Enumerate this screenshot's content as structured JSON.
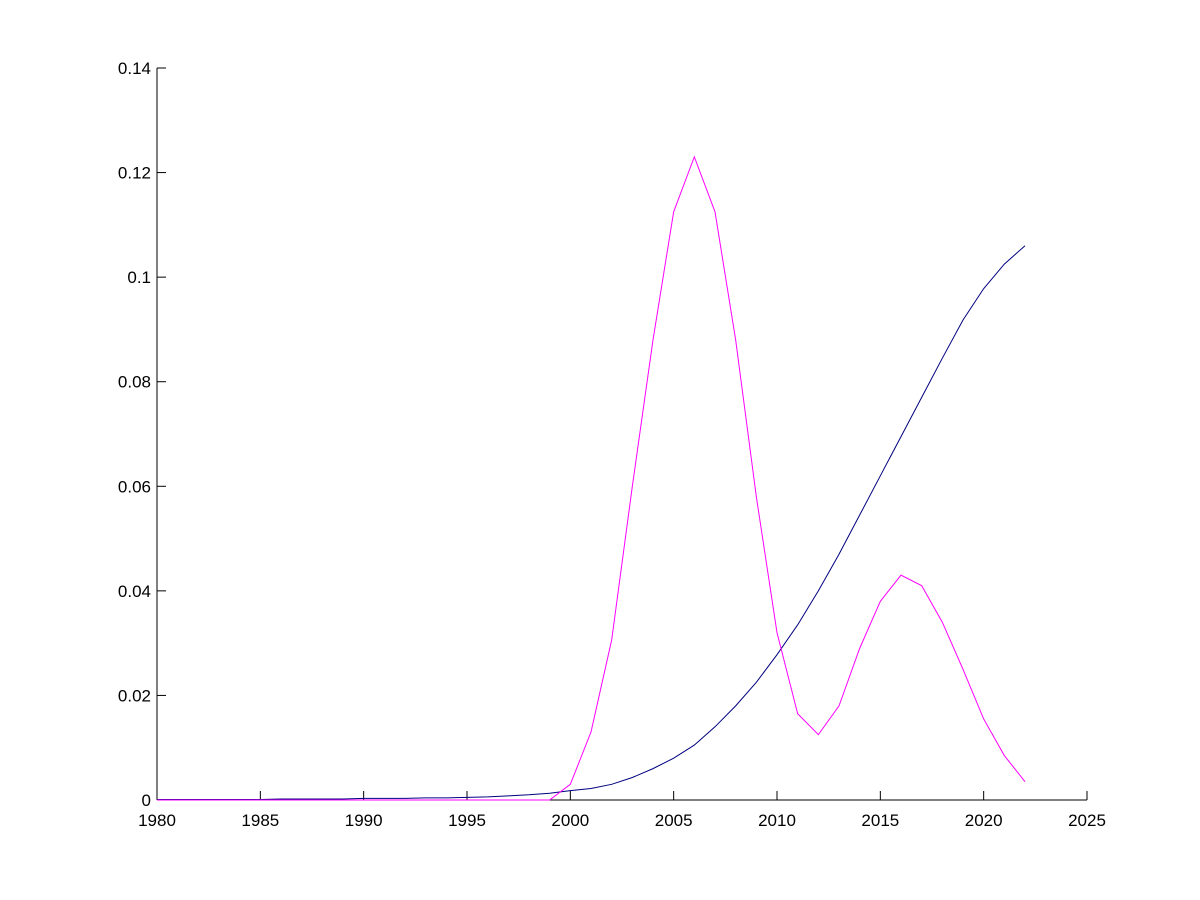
{
  "chart_data": {
    "type": "line",
    "x": [
      1980,
      1981,
      1982,
      1983,
      1984,
      1985,
      1986,
      1987,
      1988,
      1989,
      1990,
      1991,
      1992,
      1993,
      1994,
      1995,
      1996,
      1997,
      1998,
      1999,
      2000,
      2001,
      2002,
      2003,
      2004,
      2005,
      2006,
      2007,
      2008,
      2009,
      2010,
      2011,
      2012,
      2013,
      2014,
      2015,
      2016,
      2017,
      2018,
      2019,
      2020,
      2021,
      2022
    ],
    "series": [
      {
        "color": "#000080",
        "values": [
          0.0001,
          0.0001,
          0.0001,
          0.0001,
          0.0001,
          0.0001,
          0.0002,
          0.0002,
          0.0002,
          0.0002,
          0.0003,
          0.0003,
          0.0003,
          0.0004,
          0.0004,
          0.0005,
          0.0006,
          0.0008,
          0.001,
          0.0013,
          0.0018,
          0.0022,
          0.003,
          0.0043,
          0.006,
          0.008,
          0.0105,
          0.014,
          0.018,
          0.0225,
          0.0278,
          0.0335,
          0.04,
          0.047,
          0.0545,
          0.062,
          0.0695,
          0.077,
          0.0845,
          0.0918,
          0.0978,
          0.1025,
          0.106
        ]
      },
      {
        "color": "#ff00ff",
        "values": [
          0,
          0,
          0,
          0,
          0,
          0,
          0,
          0,
          0,
          0,
          0,
          0,
          0,
          0,
          0,
          0,
          0,
          0,
          0,
          0,
          0.003,
          0.013,
          0.0306,
          0.06,
          0.088,
          0.1125,
          0.123,
          0.1125,
          0.088,
          0.058,
          0.032,
          0.0165,
          0.0125,
          0.018,
          0.029,
          0.038,
          0.043,
          0.041,
          0.034,
          0.025,
          0.0155,
          0.0085,
          0.0035
        ]
      }
    ],
    "xlim": [
      1980,
      2025
    ],
    "xticks": [
      1980,
      1985,
      1990,
      1995,
      2000,
      2005,
      2010,
      2015,
      2020,
      2025
    ],
    "ylim": [
      0,
      0.14
    ],
    "yticks": [
      0,
      0.02,
      0.04,
      0.06,
      0.08,
      0.1,
      0.12,
      0.14
    ]
  }
}
